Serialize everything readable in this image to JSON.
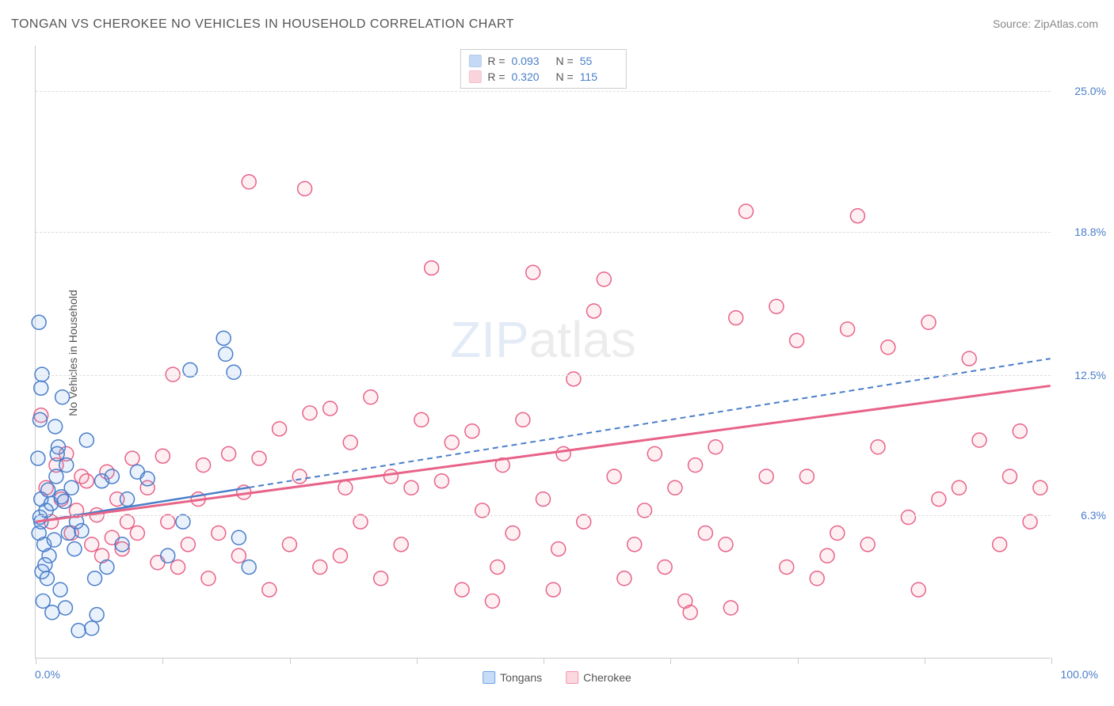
{
  "title": "TONGAN VS CHEROKEE NO VEHICLES IN HOUSEHOLD CORRELATION CHART",
  "source": "Source: ZipAtlas.com",
  "ylabel": "No Vehicles in Household",
  "watermark_zip": "ZIP",
  "watermark_atlas": "atlas",
  "chart": {
    "type": "scatter",
    "background_color": "#ffffff",
    "grid_color": "#dddddd",
    "axis_color": "#cccccc",
    "label_color": "#555555",
    "tick_label_color": "#4a7ec9",
    "tick_fontsize": 14,
    "title_fontsize": 16,
    "label_fontsize": 14,
    "xlim": [
      0,
      100
    ],
    "ylim": [
      0,
      27
    ],
    "x_tick_positions": [
      0,
      12.5,
      25,
      37.5,
      50,
      62.5,
      75,
      87.5,
      100
    ],
    "y_ticks": [
      {
        "v": 6.3,
        "label": "6.3%"
      },
      {
        "v": 12.5,
        "label": "12.5%"
      },
      {
        "v": 18.8,
        "label": "18.8%"
      },
      {
        "v": 25.0,
        "label": "25.0%"
      }
    ],
    "x_min_label": "0.0%",
    "x_max_label": "100.0%",
    "marker_radius": 9,
    "marker_stroke_width": 1.5,
    "marker_fill_opacity": 0.15,
    "series": [
      {
        "name": "Tongans",
        "color": "#6aa3e8",
        "stroke": "#4a7ec9",
        "R": "0.093",
        "N": "55",
        "trend": {
          "x1": 0,
          "y1": 6.0,
          "x2": 100,
          "y2": 13.2,
          "solid_until_x": 21,
          "stroke_width": 2.5
        },
        "points": [
          [
            0.5,
            6.0
          ],
          [
            0.5,
            7.0
          ],
          [
            0.3,
            5.5
          ],
          [
            1.0,
            6.5
          ],
          [
            1.2,
            7.4
          ],
          [
            0.8,
            5.0
          ],
          [
            1.5,
            6.8
          ],
          [
            2.0,
            8.0
          ],
          [
            1.3,
            4.5
          ],
          [
            2.2,
            9.3
          ],
          [
            2.5,
            7.1
          ],
          [
            0.6,
            3.8
          ],
          [
            1.8,
            5.2
          ],
          [
            3.0,
            8.5
          ],
          [
            2.8,
            6.9
          ],
          [
            0.9,
            4.1
          ],
          [
            1.1,
            3.5
          ],
          [
            0.4,
            6.2
          ],
          [
            2.1,
            9.0
          ],
          [
            3.5,
            7.5
          ],
          [
            0.7,
            2.5
          ],
          [
            1.6,
            2.0
          ],
          [
            2.4,
            3.0
          ],
          [
            3.2,
            5.5
          ],
          [
            4.0,
            6.0
          ],
          [
            1.9,
            10.2
          ],
          [
            0.2,
            8.8
          ],
          [
            0.5,
            11.9
          ],
          [
            5.0,
            9.6
          ],
          [
            4.5,
            5.6
          ],
          [
            3.8,
            4.8
          ],
          [
            2.9,
            2.2
          ],
          [
            4.2,
            1.2
          ],
          [
            5.5,
            1.3
          ],
          [
            6.0,
            1.9
          ],
          [
            6.5,
            7.8
          ],
          [
            7.5,
            8.0
          ],
          [
            0.3,
            14.8
          ],
          [
            0.6,
            12.5
          ],
          [
            5.8,
            3.5
          ],
          [
            7.0,
            4.0
          ],
          [
            8.5,
            5.0
          ],
          [
            9.0,
            7.0
          ],
          [
            10.0,
            8.2
          ],
          [
            11.0,
            7.9
          ],
          [
            13.0,
            4.5
          ],
          [
            14.5,
            6.0
          ],
          [
            15.2,
            12.7
          ],
          [
            18.5,
            14.1
          ],
          [
            18.7,
            13.4
          ],
          [
            19.5,
            12.6
          ],
          [
            20.0,
            5.3
          ],
          [
            21.0,
            4.0
          ],
          [
            0.4,
            10.5
          ],
          [
            2.6,
            11.5
          ]
        ]
      },
      {
        "name": "Cherokee",
        "color": "#f595ac",
        "stroke": "#e86388",
        "R": "0.320",
        "N": "115",
        "trend": {
          "x1": 0,
          "y1": 6.0,
          "x2": 100,
          "y2": 12.0,
          "solid_until_x": 100,
          "stroke_width": 3
        },
        "points": [
          [
            0.5,
            10.7
          ],
          [
            1.0,
            7.5
          ],
          [
            1.5,
            6.0
          ],
          [
            2.0,
            8.5
          ],
          [
            2.5,
            7.0
          ],
          [
            3.0,
            9.0
          ],
          [
            3.5,
            5.5
          ],
          [
            4.0,
            6.5
          ],
          [
            4.5,
            8.0
          ],
          [
            5.0,
            7.8
          ],
          [
            5.5,
            5.0
          ],
          [
            6.0,
            6.3
          ],
          [
            6.5,
            4.5
          ],
          [
            7.0,
            8.2
          ],
          [
            7.5,
            5.3
          ],
          [
            8.0,
            7.0
          ],
          [
            8.5,
            4.8
          ],
          [
            9.0,
            6.0
          ],
          [
            9.5,
            8.8
          ],
          [
            10.0,
            5.5
          ],
          [
            11.0,
            7.5
          ],
          [
            12.0,
            4.2
          ],
          [
            12.5,
            8.9
          ],
          [
            13.0,
            6.0
          ],
          [
            13.5,
            12.5
          ],
          [
            14.0,
            4.0
          ],
          [
            15.0,
            5.0
          ],
          [
            16.0,
            7.0
          ],
          [
            16.5,
            8.5
          ],
          [
            17.0,
            3.5
          ],
          [
            18.0,
            5.5
          ],
          [
            19.0,
            9.0
          ],
          [
            20.0,
            4.5
          ],
          [
            20.5,
            7.3
          ],
          [
            21.0,
            21.0
          ],
          [
            22.0,
            8.8
          ],
          [
            23.0,
            3.0
          ],
          [
            24.0,
            10.1
          ],
          [
            25.0,
            5.0
          ],
          [
            26.0,
            8.0
          ],
          [
            26.5,
            20.7
          ],
          [
            27.0,
            10.8
          ],
          [
            28.0,
            4.0
          ],
          [
            29.0,
            11.0
          ],
          [
            30.0,
            4.5
          ],
          [
            30.5,
            7.5
          ],
          [
            31.0,
            9.5
          ],
          [
            32.0,
            6.0
          ],
          [
            33.0,
            11.5
          ],
          [
            34.0,
            3.5
          ],
          [
            35.0,
            8.0
          ],
          [
            36.0,
            5.0
          ],
          [
            37.0,
            7.5
          ],
          [
            38.0,
            10.5
          ],
          [
            39.0,
            17.2
          ],
          [
            40.0,
            7.8
          ],
          [
            41.0,
            9.5
          ],
          [
            42.0,
            3.0
          ],
          [
            43.0,
            10.0
          ],
          [
            44.0,
            6.5
          ],
          [
            45.0,
            2.5
          ],
          [
            46.0,
            8.5
          ],
          [
            47.0,
            5.5
          ],
          [
            48.0,
            10.5
          ],
          [
            49.0,
            17.0
          ],
          [
            50.0,
            7.0
          ],
          [
            51.0,
            3.0
          ],
          [
            52.0,
            9.0
          ],
          [
            53.0,
            12.3
          ],
          [
            54.0,
            6.0
          ],
          [
            55.0,
            15.3
          ],
          [
            56.0,
            16.7
          ],
          [
            57.0,
            8.0
          ],
          [
            58.0,
            3.5
          ],
          [
            59.0,
            5.0
          ],
          [
            60.0,
            6.5
          ],
          [
            61.0,
            9.0
          ],
          [
            62.0,
            4.0
          ],
          [
            63.0,
            7.5
          ],
          [
            64.0,
            2.5
          ],
          [
            65.0,
            8.5
          ],
          [
            66.0,
            5.5
          ],
          [
            67.0,
            9.3
          ],
          [
            68.0,
            5.0
          ],
          [
            69.0,
            15.0
          ],
          [
            70.0,
            19.7
          ],
          [
            72.0,
            8.0
          ],
          [
            73.0,
            15.5
          ],
          [
            74.0,
            4.0
          ],
          [
            75.0,
            14.0
          ],
          [
            76.0,
            8.0
          ],
          [
            77.0,
            3.5
          ],
          [
            78.0,
            4.5
          ],
          [
            79.0,
            5.5
          ],
          [
            80.0,
            14.5
          ],
          [
            81.0,
            19.5
          ],
          [
            82.0,
            5.0
          ],
          [
            83.0,
            9.3
          ],
          [
            84.0,
            13.7
          ],
          [
            86.0,
            6.2
          ],
          [
            87.0,
            3.0
          ],
          [
            88.0,
            14.8
          ],
          [
            89.0,
            7.0
          ],
          [
            91.0,
            7.5
          ],
          [
            92.0,
            13.2
          ],
          [
            93.0,
            9.6
          ],
          [
            95.0,
            5.0
          ],
          [
            96.0,
            8.0
          ],
          [
            97.0,
            10.0
          ],
          [
            98.0,
            6.0
          ],
          [
            99.0,
            7.5
          ],
          [
            64.5,
            2.0
          ],
          [
            68.5,
            2.2
          ],
          [
            45.5,
            4.0
          ],
          [
            51.5,
            4.8
          ]
        ]
      }
    ],
    "bottom_legend": [
      {
        "label": "Tongans",
        "fill": "#c7ddf7",
        "stroke": "#6aa3e8"
      },
      {
        "label": "Cherokee",
        "fill": "#fbd7e0",
        "stroke": "#f595ac"
      }
    ]
  }
}
